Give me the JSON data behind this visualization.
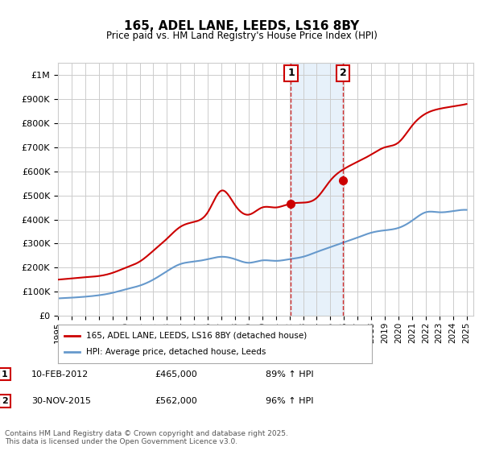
{
  "title": "165, ADEL LANE, LEEDS, LS16 8BY",
  "subtitle": "Price paid vs. HM Land Registry's House Price Index (HPI)",
  "ylabel_ticks": [
    "£0",
    "£100K",
    "£200K",
    "£300K",
    "£400K",
    "£500K",
    "£600K",
    "£700K",
    "£800K",
    "£900K",
    "£1M"
  ],
  "ytick_vals": [
    0,
    100000,
    200000,
    300000,
    400000,
    500000,
    600000,
    700000,
    800000,
    900000,
    1000000
  ],
  "ylim": [
    0,
    1050000
  ],
  "xlim_start": 1995.0,
  "xlim_end": 2025.5,
  "marker1_x": 2012.11,
  "marker1_y": 465000,
  "marker2_x": 2015.92,
  "marker2_y": 562000,
  "marker1_label": "1",
  "marker2_label": "2",
  "annotation1": "10-FEB-2012    £465,000    89% ↑ HPI",
  "annotation2": "30-NOV-2015    £562,000    96% ↑ HPI",
  "legend_line1": "165, ADEL LANE, LEEDS, LS16 8BY (detached house)",
  "legend_line2": "HPI: Average price, detached house, Leeds",
  "footer": "Contains HM Land Registry data © Crown copyright and database right 2025.\nThis data is licensed under the Open Government Licence v3.0.",
  "line1_color": "#cc0000",
  "line2_color": "#6699cc",
  "shade_color": "#d0e4f7",
  "marker_box_color": "#cc0000",
  "bg_color": "#ffffff",
  "grid_color": "#cccccc",
  "title_color": "#000000",
  "hpi_line": {
    "years": [
      1995,
      1996,
      1997,
      1998,
      1999,
      2000,
      2001,
      2002,
      2003,
      2004,
      2005,
      2006,
      2007,
      2008,
      2009,
      2010,
      2011,
      2012,
      2013,
      2014,
      2015,
      2016,
      2017,
      2018,
      2019,
      2020,
      2021,
      2022,
      2023,
      2024,
      2025
    ],
    "values": [
      72000,
      75000,
      79000,
      85000,
      95000,
      110000,
      125000,
      150000,
      185000,
      215000,
      225000,
      235000,
      245000,
      235000,
      220000,
      230000,
      228000,
      235000,
      245000,
      265000,
      285000,
      305000,
      325000,
      345000,
      355000,
      365000,
      395000,
      430000,
      430000,
      435000,
      440000
    ]
  },
  "price_line": {
    "years": [
      1995,
      1996,
      1997,
      1998,
      1999,
      2000,
      2001,
      2002,
      2003,
      2004,
      2005,
      2006,
      2007,
      2008,
      2009,
      2010,
      2011,
      2012,
      2013,
      2014,
      2015,
      2016,
      2017,
      2018,
      2019,
      2020,
      2021,
      2022,
      2023,
      2024,
      2025
    ],
    "values": [
      150000,
      155000,
      160000,
      165000,
      178000,
      200000,
      225000,
      270000,
      320000,
      370000,
      390000,
      430000,
      520000,
      460000,
      420000,
      450000,
      450000,
      465000,
      470000,
      490000,
      562000,
      610000,
      640000,
      670000,
      700000,
      720000,
      790000,
      840000,
      860000,
      870000,
      880000
    ]
  }
}
